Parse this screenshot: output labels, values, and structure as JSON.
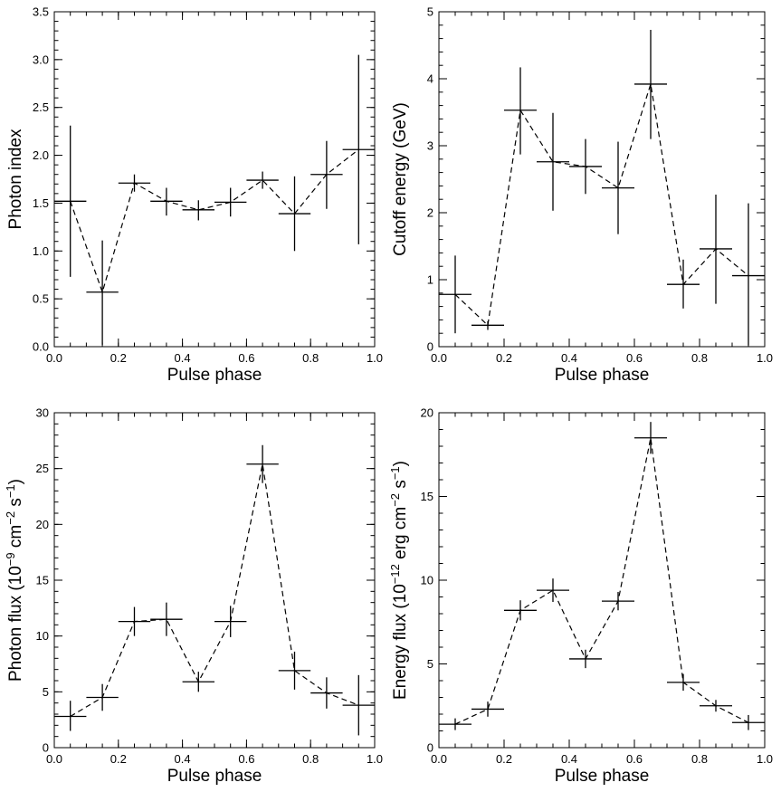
{
  "chart_data": [
    {
      "type": "scatter",
      "title": "",
      "xlabel": "Pulse phase",
      "ylabel": "Photon index",
      "xlim": [
        0,
        1
      ],
      "ylim": [
        0,
        3.5
      ],
      "xticks": [
        "0.0",
        "0.2",
        "0.4",
        "0.6",
        "0.8",
        "1.0"
      ],
      "yticks": [
        "0.0",
        "0.5",
        "1.0",
        "1.5",
        "2.0",
        "2.5",
        "3.0",
        "3.5"
      ],
      "grid": false,
      "series": [
        {
          "name": "Photon index",
          "x": [
            0.05,
            0.15,
            0.25,
            0.35,
            0.45,
            0.55,
            0.65,
            0.75,
            0.85,
            0.95
          ],
          "xerr": [
            0.05,
            0.05,
            0.05,
            0.05,
            0.05,
            0.05,
            0.05,
            0.05,
            0.05,
            0.05
          ],
          "y": [
            1.52,
            0.57,
            1.71,
            1.52,
            1.43,
            1.51,
            1.74,
            1.39,
            1.8,
            2.06
          ],
          "y_low": [
            0.73,
            0.02,
            1.62,
            1.37,
            1.32,
            1.36,
            1.65,
            1.0,
            1.44,
            1.07
          ],
          "y_high": [
            2.31,
            1.11,
            1.8,
            1.66,
            1.53,
            1.66,
            1.83,
            1.78,
            2.15,
            3.05
          ]
        }
      ]
    },
    {
      "type": "scatter",
      "title": "",
      "xlabel": "Pulse phase",
      "ylabel": "Cutoff energy (GeV)",
      "xlim": [
        0,
        1
      ],
      "ylim": [
        0,
        5
      ],
      "xticks": [
        "0.0",
        "0.2",
        "0.4",
        "0.6",
        "0.8",
        "1.0"
      ],
      "yticks": [
        "0",
        "1",
        "2",
        "3",
        "4",
        "5"
      ],
      "grid": false,
      "series": [
        {
          "name": "Cutoff energy",
          "x": [
            0.05,
            0.15,
            0.25,
            0.35,
            0.45,
            0.55,
            0.65,
            0.75,
            0.85,
            0.95
          ],
          "xerr": [
            0.05,
            0.05,
            0.05,
            0.05,
            0.05,
            0.05,
            0.05,
            0.05,
            0.05,
            0.05
          ],
          "y": [
            0.78,
            0.32,
            3.53,
            2.76,
            2.69,
            2.37,
            3.92,
            0.93,
            1.46,
            1.06
          ],
          "y_low": [
            0.2,
            0.25,
            2.87,
            2.03,
            2.28,
            1.68,
            3.1,
            0.57,
            0.64,
            0.02
          ],
          "y_high": [
            1.36,
            0.38,
            4.17,
            3.49,
            3.1,
            3.06,
            4.73,
            1.3,
            2.27,
            2.14
          ]
        }
      ]
    },
    {
      "type": "scatter",
      "title": "",
      "xlabel": "Pulse phase",
      "ylabel": "Photon flux (10^-9 cm^-2 s^-1)",
      "ylabel_parts": {
        "pre": "Photon flux (10",
        "e1": "−9",
        "mid": " cm",
        "e2": "−2",
        "mid2": " s",
        "e3": "−1",
        "post": ")"
      },
      "xlim": [
        0,
        1
      ],
      "ylim": [
        0,
        30
      ],
      "xticks": [
        "0.0",
        "0.2",
        "0.4",
        "0.6",
        "0.8",
        "1.0"
      ],
      "yticks": [
        "0",
        "5",
        "10",
        "15",
        "20",
        "25",
        "30"
      ],
      "grid": false,
      "series": [
        {
          "name": "Photon flux",
          "x": [
            0.05,
            0.15,
            0.25,
            0.35,
            0.45,
            0.55,
            0.65,
            0.75,
            0.85,
            0.95
          ],
          "xerr": [
            0.05,
            0.05,
            0.05,
            0.05,
            0.05,
            0.05,
            0.05,
            0.05,
            0.05,
            0.05
          ],
          "y": [
            2.8,
            4.5,
            11.3,
            11.5,
            5.9,
            11.3,
            25.4,
            6.9,
            4.9,
            3.8
          ],
          "y_low": [
            1.5,
            3.3,
            10.0,
            10.0,
            5.0,
            9.9,
            23.7,
            5.2,
            3.5,
            1.1
          ],
          "y_high": [
            4.2,
            5.7,
            12.6,
            13.0,
            6.8,
            12.7,
            27.1,
            8.6,
            6.3,
            6.5
          ]
        }
      ]
    },
    {
      "type": "scatter",
      "title": "",
      "xlabel": "Pulse phase",
      "ylabel": "Energy flux (10^-12 erg cm^-2 s^-1)",
      "ylabel_parts": {
        "pre": "Energy flux (10",
        "e1": "−12",
        "mid": " erg cm",
        "e2": "−2",
        "mid2": " s",
        "e3": "−1",
        "post": ")"
      },
      "xlim": [
        0,
        1
      ],
      "ylim": [
        0,
        20
      ],
      "xticks": [
        "0.0",
        "0.2",
        "0.4",
        "0.6",
        "0.8",
        "1.0"
      ],
      "yticks": [
        "0",
        "5",
        "10",
        "15",
        "20"
      ],
      "grid": false,
      "series": [
        {
          "name": "Energy flux",
          "x": [
            0.05,
            0.15,
            0.25,
            0.35,
            0.45,
            0.55,
            0.65,
            0.75,
            0.85,
            0.95
          ],
          "xerr": [
            0.05,
            0.05,
            0.05,
            0.05,
            0.05,
            0.05,
            0.05,
            0.05,
            0.05,
            0.05
          ],
          "y": [
            1.4,
            2.3,
            8.2,
            9.4,
            5.3,
            8.75,
            18.5,
            3.9,
            2.5,
            1.5
          ],
          "y_low": [
            1.05,
            1.85,
            7.6,
            8.7,
            4.75,
            8.2,
            17.55,
            3.4,
            2.15,
            1.05
          ],
          "y_high": [
            1.75,
            2.75,
            8.8,
            10.1,
            5.85,
            9.3,
            19.45,
            4.4,
            2.85,
            1.95
          ]
        }
      ]
    }
  ]
}
